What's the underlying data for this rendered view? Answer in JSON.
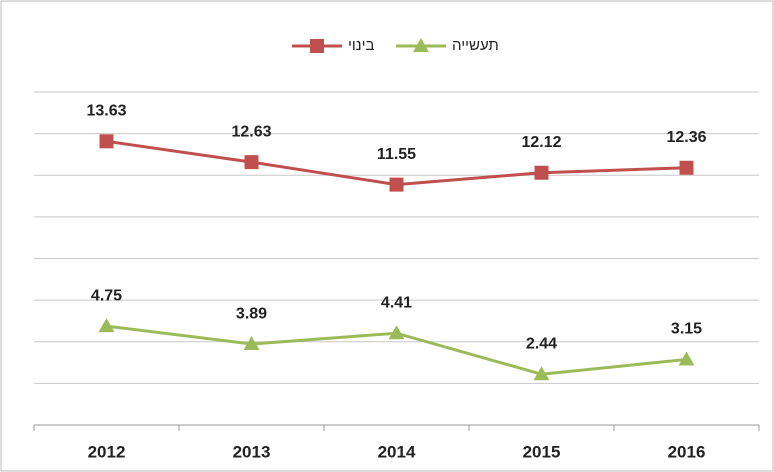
{
  "chart_data": {
    "type": "line",
    "categories": [
      "2012",
      "2013",
      "2014",
      "2015",
      "2016"
    ],
    "series": [
      {
        "name": "בינוי",
        "color": "#c0504d",
        "marker": "square",
        "values": [
          13.63,
          12.63,
          11.55,
          12.12,
          12.36
        ]
      },
      {
        "name": "תעשייה",
        "color": "#9bbb59",
        "marker": "triangle",
        "values": [
          4.75,
          3.89,
          4.41,
          2.44,
          3.15
        ]
      }
    ],
    "ylim": [
      0,
      16
    ],
    "yticks": [
      0,
      2,
      4,
      6,
      8,
      10,
      12,
      14,
      16
    ],
    "grid": true,
    "legend": "top"
  }
}
